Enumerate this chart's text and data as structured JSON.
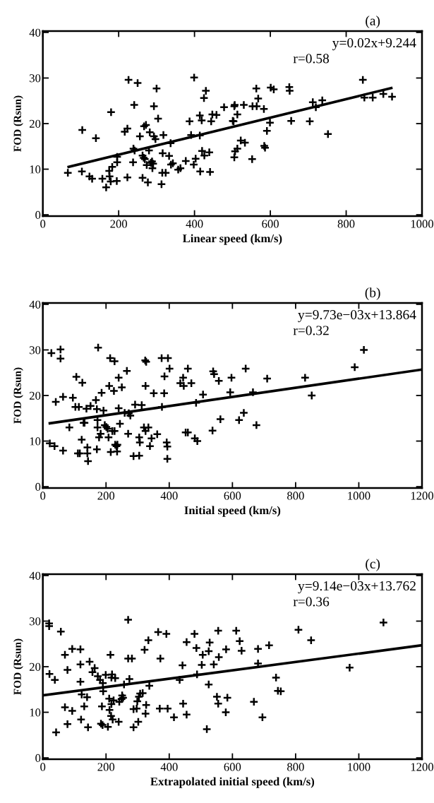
{
  "chart_data": [
    {
      "type": "scatter",
      "title": "(a)",
      "xlabel": "Linear speed (km/s)",
      "ylabel": "FOD (Rsun)",
      "annotations": [
        "y=0.02x+9.244",
        "r=0.58"
      ],
      "grid": false,
      "xlim": [
        0,
        1000
      ],
      "xticks": [
        0,
        200,
        400,
        600,
        800,
        1000
      ],
      "ylim": [
        -0.3,
        40.3
      ],
      "yticks": [
        0,
        10,
        20,
        30,
        40
      ],
      "series": [
        {
          "marker": "cross",
          "color": "#000000",
          "x": [
            66,
            103,
            104,
            123,
            130,
            140,
            157,
            167,
            175,
            176,
            179,
            180,
            183,
            195,
            196,
            196,
            216,
            223,
            223,
            226,
            238,
            239,
            241,
            242,
            250,
            256,
            263,
            263,
            266,
            267,
            269,
            272,
            274,
            277,
            280,
            282,
            285,
            289,
            288,
            291,
            293,
            293,
            297,
            300,
            304,
            316,
            313,
            315,
            318,
            324,
            333,
            337,
            338,
            343,
            357,
            363,
            377,
            387,
            391,
            399,
            398,
            403,
            414,
            414,
            415,
            419,
            420,
            425,
            426,
            430,
            439,
            441,
            444,
            447,
            458,
            478,
            505,
            503,
            505,
            507,
            513,
            522,
            533,
            501,
            506,
            513,
            530,
            552,
            553,
            563,
            564,
            568,
            583,
            584,
            586,
            591,
            599,
            601,
            609,
            650,
            651,
            655,
            704,
            712,
            720,
            737,
            752,
            844,
            848,
            870,
            898,
            921
          ],
          "values": [
            9.2,
            9.5,
            18.6,
            8.4,
            7.9,
            16.8,
            7.9,
            6.0,
            9.6,
            8.4,
            7.3,
            22.5,
            10.5,
            7.4,
            11.5,
            12.7,
            18.2,
            18.9,
            8.2,
            29.6,
            11.5,
            14.5,
            24.1,
            14.1,
            28.9,
            17.2,
            8.1,
            13.0,
            12.5,
            19.4,
            12.2,
            19.7,
            10.9,
            7.1,
            14.1,
            18.1,
            11.4,
            10.2,
            11.7,
            11.2,
            23.8,
            17.2,
            16.6,
            27.7,
            21.1,
            13.5,
            6.7,
            9.2,
            17.5,
            9.2,
            12.9,
            15.7,
            11.0,
            11.3,
            9.9,
            10.2,
            11.8,
            20.5,
            17.5,
            30.1,
            11.0,
            12.3,
            21.8,
            17.4,
            9.5,
            20.7,
            14.0,
            25.6,
            13.0,
            27.2,
            13.7,
            9.4,
            20.5,
            22.0,
            21.9,
            23.6,
            23.8,
            20.5,
            12.6,
            13.9,
            14.5,
            16.3,
            15.8,
            20.6,
            24.1,
            22.0,
            24.1,
            12.2,
            23.8,
            27.7,
            23.8,
            25.5,
            23.2,
            15.1,
            14.7,
            18.4,
            20.2,
            27.9,
            27.5,
            28.0,
            27.2,
            20.6,
            20.5,
            24.7,
            23.6,
            25.1,
            17.7,
            29.6,
            25.7,
            25.7,
            26.5,
            25.9
          ]
        },
        {
          "type": "line",
          "color": "#000000",
          "x": [
            68,
            919
          ],
          "values": [
            10.5,
            27.8
          ]
        }
      ]
    },
    {
      "type": "scatter",
      "title": "(b)",
      "xlabel": "Initial speed (km/s)",
      "ylabel": "FOD (Rsun)",
      "annotations": [
        "y=9.73e−03x+13.864",
        "r=0.32"
      ],
      "grid": false,
      "xlim": [
        0,
        1200
      ],
      "xticks": [
        0,
        200,
        400,
        600,
        800,
        1000,
        1200
      ],
      "ylim": [
        -0.3,
        40.3
      ],
      "yticks": [
        0,
        10,
        20,
        30,
        40
      ],
      "series": [
        {
          "marker": "cross",
          "color": "#000000",
          "x": [
            22,
            27,
            37,
            41,
            56,
            56,
            64,
            64,
            84,
            95,
            106,
            103,
            114,
            111,
            117,
            123,
            125,
            129,
            132,
            138,
            141,
            141,
            143,
            151,
            168,
            171,
            173,
            173,
            171,
            175,
            178,
            183,
            186,
            192,
            196,
            201,
            205,
            208,
            210,
            213,
            215,
            220,
            225,
            227,
            227,
            229,
            233,
            235,
            236,
            240,
            240,
            244,
            250,
            259,
            266,
            272,
            270,
            277,
            287,
            292,
            305,
            305,
            307,
            313,
            320,
            324,
            325,
            325,
            327,
            334,
            339,
            344,
            351,
            362,
            376,
            377,
            384,
            385,
            392,
            394,
            394,
            396,
            401,
            435,
            444,
            446,
            452,
            459,
            459,
            470,
            481,
            485,
            489,
            507,
            537,
            539,
            542,
            557,
            562,
            593,
            597,
            621,
            636,
            642,
            665,
            676,
            710,
            830,
            851,
            987,
            1016
          ],
          "values": [
            9.5,
            29.3,
            8.9,
            18.6,
            30.1,
            28.1,
            7.9,
            19.7,
            13.0,
            19.5,
            24.1,
            17.5,
            17.5,
            7.3,
            7.3,
            10.3,
            22.8,
            14.0,
            14.0,
            17.1,
            8.6,
            7.3,
            5.6,
            17.7,
            19.0,
            17.0,
            14.6,
            13.0,
            8.2,
            30.5,
            10.8,
            11.6,
            20.6,
            16.7,
            13.5,
            13.1,
            12.7,
            10.8,
            22.1,
            28.2,
            7.6,
            12.2,
            21.0,
            27.5,
            12.2,
            9.2,
            8.9,
            7.7,
            9.2,
            17.2,
            23.9,
            13.8,
            21.8,
            16.2,
            25.4,
            16.1,
            11.6,
            15.6,
            6.7,
            18.0,
            6.8,
            10.8,
            9.7,
            17.9,
            13.0,
            27.7,
            12.2,
            22.1,
            27.4,
            13.0,
            8.9,
            10.6,
            20.5,
            11.5,
            28.2,
            17.5,
            20.5,
            24.2,
            9.7,
            8.8,
            6.1,
            28.2,
            25.9,
            22.7,
            23.9,
            22.1,
            11.9,
            11.9,
            25.9,
            22.7,
            10.6,
            18.4,
            10.0,
            20.2,
            12.3,
            25.3,
            24.7,
            23.2,
            14.8,
            20.7,
            23.9,
            14.6,
            16.2,
            25.9,
            20.7,
            13.5,
            23.7,
            23.9,
            20.0,
            26.2,
            30.0
          ]
        },
        {
          "type": "line",
          "color": "#000000",
          "x": [
            22,
            1200
          ],
          "values": [
            13.9,
            25.7
          ]
        }
      ]
    },
    {
      "type": "scatter",
      "title": "(c)",
      "xlabel": "Extrapolated initial speed (km/s)",
      "ylabel": "FOD (Rsun)",
      "annotations": [
        "y=9.14e−03x+13.762",
        "r=0.36"
      ],
      "grid": false,
      "xlim": [
        0,
        1200
      ],
      "xticks": [
        0,
        200,
        400,
        600,
        800,
        1000,
        1200
      ],
      "ylim": [
        -0.3,
        40.3
      ],
      "yticks": [
        0,
        10,
        20,
        30,
        40
      ],
      "series": [
        {
          "marker": "cross",
          "color": "#000000",
          "x": [
            20,
            20,
            21,
            38,
            42,
            57,
            70,
            70,
            78,
            78,
            93,
            93,
            119,
            119,
            119,
            121,
            123,
            131,
            140,
            143,
            148,
            157,
            164,
            174,
            181,
            184,
            187,
            189,
            190,
            191,
            199,
            210,
            206,
            211,
            214,
            216,
            217,
            219,
            217,
            224,
            221,
            229,
            240,
            242,
            249,
            251,
            254,
            257,
            270,
            270,
            274,
            282,
            287,
            287,
            297,
            299,
            302,
            304,
            308,
            316,
            322,
            325,
            327,
            334,
            337,
            365,
            372,
            370,
            391,
            395,
            415,
            433,
            442,
            444,
            455,
            455,
            480,
            486,
            488,
            503,
            506,
            519,
            525,
            525,
            528,
            541,
            551,
            555,
            557,
            555,
            580,
            579,
            584,
            612,
            623,
            629,
            681,
            681,
            716,
            738,
            744,
            753,
            668,
            695,
            809,
            849,
            971,
            1078
          ],
          "values": [
            29.5,
            28.9,
            18.4,
            17.1,
            5.6,
            27.7,
            22.6,
            11.1,
            19.3,
            7.4,
            10.3,
            23.9,
            23.8,
            20.5,
            16.7,
            8.4,
            13.9,
            11.3,
            13.3,
            6.7,
            21.1,
            18.8,
            19.7,
            17.9,
            17.1,
            7.5,
            11.3,
            7.2,
            16.4,
            14.6,
            18.2,
            13.0,
            6.8,
            10.5,
            22.6,
            9.2,
            17.6,
            18.3,
            11.8,
            12.6,
            8.4,
            17.5,
            7.9,
            12.3,
            12.9,
            13.7,
            13.2,
            16.1,
            30.3,
            21.8,
            17.3,
            21.8,
            10.7,
            6.7,
            10.8,
            12.4,
            7.9,
            13.4,
            14.1,
            14.2,
            23.7,
            9.7,
            11.6,
            25.8,
            15.8,
            27.6,
            21.8,
            10.8,
            27.2,
            10.8,
            8.9,
            17.1,
            20.3,
            11.9,
            9.5,
            25.4,
            27.2,
            24.1,
            18.3,
            20.4,
            22.6,
            6.3,
            16.1,
            23.4,
            25.3,
            20.5,
            13.4,
            11.9,
            22.1,
            27.9,
            23.8,
            10.0,
            13.2,
            27.9,
            25.6,
            23.5,
            23.9,
            20.7,
            24.7,
            17.6,
            14.7,
            14.6,
            12.3,
            8.9,
            28.1,
            25.8,
            19.8,
            29.7
          ]
        },
        {
          "type": "line",
          "color": "#000000",
          "x": [
            0,
            1200
          ],
          "values": [
            13.7,
            24.7
          ]
        }
      ]
    }
  ]
}
